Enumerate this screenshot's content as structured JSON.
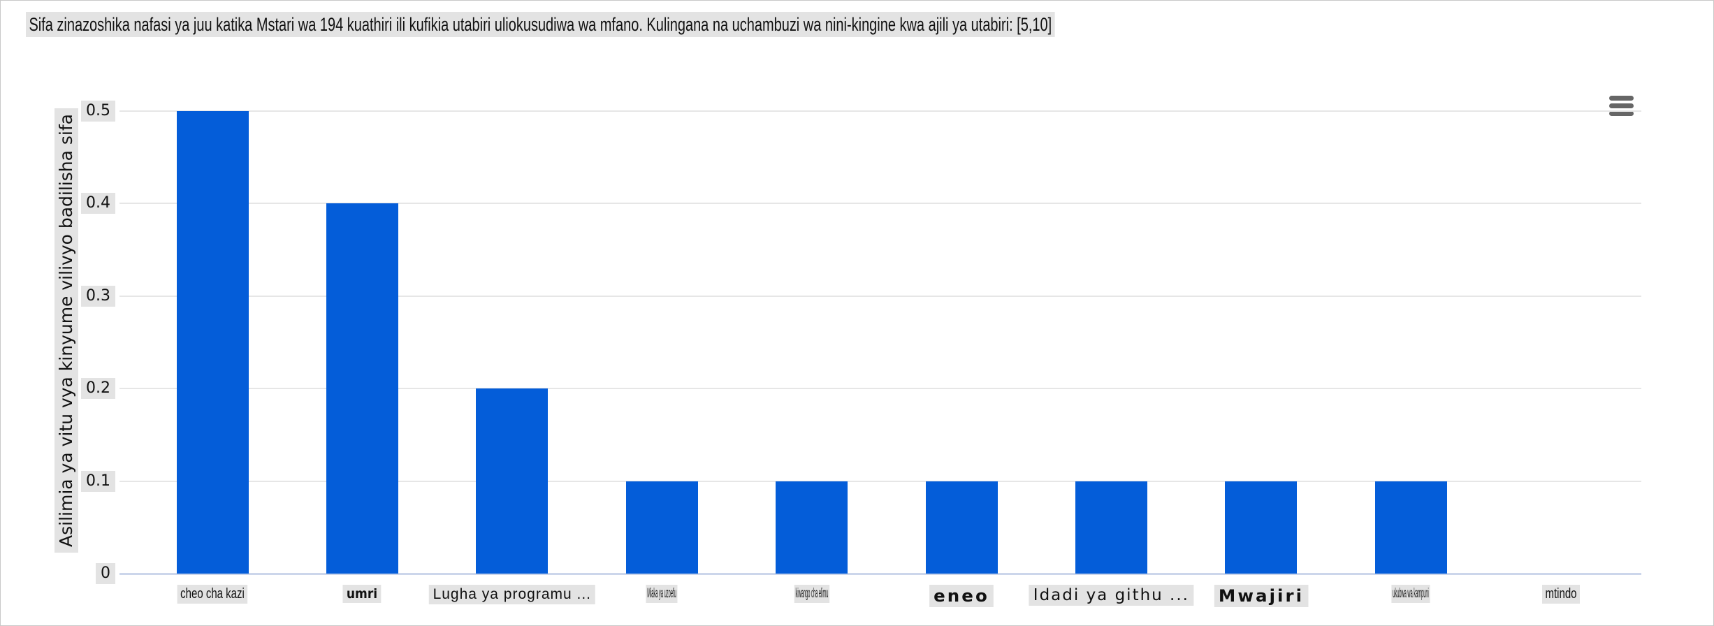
{
  "page": {
    "background": "#ffffff",
    "border_color": "#c8c8c8"
  },
  "chart_data": {
    "type": "bar",
    "title": "Sifa zinazoshika nafasi ya juu katika Mstari wa 194 kuathiri ili kufikia utabiri uliokusudiwa wa mfano. Kulingana na uchambuzi wa nini-kingine kwa ajili ya utabiri: [5,10]",
    "xlabel": "",
    "ylabel": "Asilimia ya vitu vya kinyume vilivyo badilisha sifa",
    "categories": [
      "cheo cha kazi",
      "umri",
      "Lugha ya programu ...",
      "Miaka ya uzoefu",
      "kiwango cha elimu",
      "eneo",
      "Idadi ya githu ...",
      "Mwajiri",
      "ukubwa wa kampuni",
      "mtindo"
    ],
    "values": [
      0.5,
      0.4,
      0.2,
      0.1,
      0.1,
      0.1,
      0.1,
      0.1,
      0.1,
      0
    ],
    "ylim": [
      0,
      0.5
    ],
    "yticks": [
      0,
      0.1,
      0.2,
      0.3,
      0.4,
      0.5
    ],
    "ytick_labels": [
      "0",
      "0.1",
      "0.2",
      "0.3",
      "0.4",
      "0.5"
    ],
    "grid": "horizontal",
    "legend": "none",
    "bar_color": "#045dd9",
    "gridline_color": "#e6e6e6",
    "axis_line_color": "#ccd6eb",
    "label_highlight_color": "#e3e3e3",
    "category_font_styles": [
      "condensed",
      "semibold",
      "normal",
      "ultracondensed",
      "ultracondensed",
      "expanded",
      "semiexpanded",
      "expanded",
      "ultracondensed",
      "condensed"
    ]
  },
  "toolbar": {
    "menu_icon": "hamburger-icon"
  }
}
